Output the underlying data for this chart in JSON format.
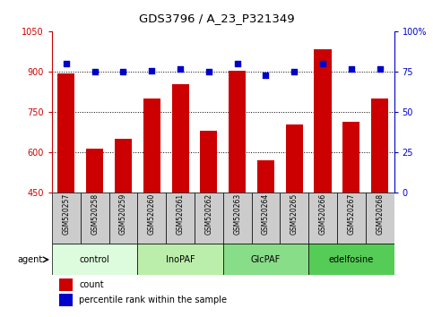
{
  "title": "GDS3796 / A_23_P321349",
  "samples": [
    "GSM520257",
    "GSM520258",
    "GSM520259",
    "GSM520260",
    "GSM520261",
    "GSM520262",
    "GSM520263",
    "GSM520264",
    "GSM520265",
    "GSM520266",
    "GSM520267",
    "GSM520268"
  ],
  "counts": [
    895,
    615,
    650,
    800,
    855,
    680,
    905,
    570,
    705,
    985,
    715,
    800
  ],
  "percentiles": [
    80,
    75,
    75,
    76,
    77,
    75,
    80,
    73,
    75,
    80,
    77,
    77
  ],
  "groups": [
    {
      "label": "control",
      "start": 0,
      "end": 3,
      "color": "#ddfcdd"
    },
    {
      "label": "InoPAF",
      "start": 3,
      "end": 6,
      "color": "#bbeeaa"
    },
    {
      "label": "GlcPAF",
      "start": 6,
      "end": 9,
      "color": "#88dd88"
    },
    {
      "label": "edelfosine",
      "start": 9,
      "end": 12,
      "color": "#55cc55"
    }
  ],
  "ylim_left": [
    450,
    1050
  ],
  "ylim_right": [
    0,
    100
  ],
  "yticks_left": [
    450,
    600,
    750,
    900,
    1050
  ],
  "yticks_right": [
    0,
    25,
    50,
    75,
    100
  ],
  "bar_color": "#cc0000",
  "dot_color": "#0000cc",
  "grid_color": "#000000",
  "bg_color": "#ffffff",
  "sample_cell_color": "#cccccc",
  "left_tick_color": "#cc0000",
  "right_tick_color": "#0000cc",
  "legend_count_label": "count",
  "legend_pct_label": "percentile rank within the sample",
  "agent_label": "agent"
}
